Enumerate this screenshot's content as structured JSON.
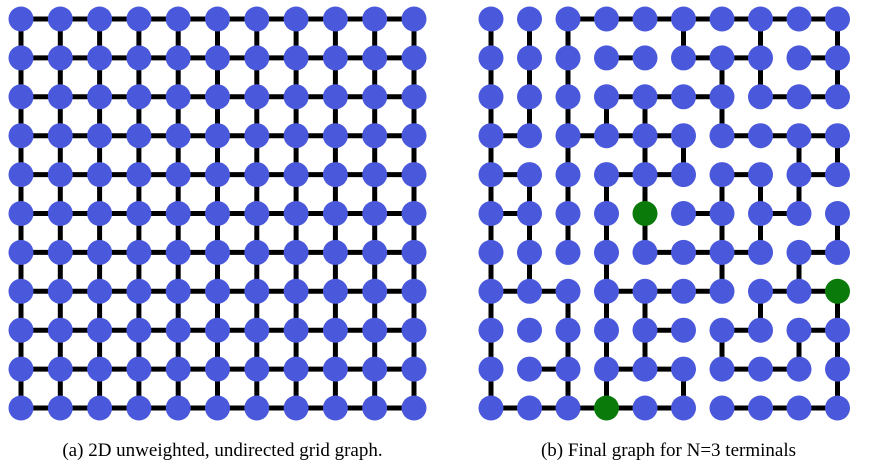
{
  "figure": {
    "panel_a": {
      "caption": "(a) 2D unweighted, undirected grid graph.",
      "grid": {
        "cols": 11,
        "rows": 11,
        "full": true
      }
    },
    "panel_b": {
      "caption": "(b) Final graph for N=3 terminals",
      "grid": {
        "cols": 10,
        "rows": 11
      },
      "terminals": [
        [
          4,
          5
        ],
        [
          9,
          7
        ],
        [
          3,
          10
        ]
      ],
      "h_edges": [
        [
          2,
          0
        ],
        [
          3,
          0
        ],
        [
          4,
          0
        ],
        [
          5,
          0
        ],
        [
          6,
          0
        ],
        [
          7,
          0
        ],
        [
          8,
          0
        ],
        [
          3,
          1
        ],
        [
          5,
          1
        ],
        [
          6,
          1
        ],
        [
          8,
          1
        ],
        [
          3,
          2
        ],
        [
          4,
          2
        ],
        [
          5,
          2
        ],
        [
          7,
          2
        ],
        [
          8,
          2
        ],
        [
          0,
          3
        ],
        [
          2,
          3
        ],
        [
          3,
          3
        ],
        [
          4,
          3
        ],
        [
          6,
          3
        ],
        [
          7,
          3
        ],
        [
          8,
          3
        ],
        [
          0,
          4
        ],
        [
          3,
          4
        ],
        [
          4,
          4
        ],
        [
          6,
          4
        ],
        [
          8,
          4
        ],
        [
          0,
          5
        ],
        [
          5,
          5
        ],
        [
          7,
          5
        ],
        [
          4,
          6
        ],
        [
          5,
          6
        ],
        [
          6,
          6
        ],
        [
          8,
          6
        ],
        [
          0,
          7
        ],
        [
          1,
          7
        ],
        [
          3,
          7
        ],
        [
          4,
          7
        ],
        [
          5,
          7
        ],
        [
          7,
          7
        ],
        [
          8,
          7
        ],
        [
          4,
          8
        ],
        [
          6,
          8
        ],
        [
          8,
          8
        ],
        [
          1,
          9
        ],
        [
          3,
          9
        ],
        [
          4,
          9
        ],
        [
          6,
          9
        ],
        [
          7,
          9
        ],
        [
          0,
          10
        ],
        [
          1,
          10
        ],
        [
          2,
          10
        ],
        [
          3,
          10
        ],
        [
          4,
          10
        ],
        [
          6,
          10
        ],
        [
          7,
          10
        ],
        [
          8,
          10
        ]
      ],
      "v_edges": [
        [
          0,
          0
        ],
        [
          1,
          0
        ],
        [
          2,
          0
        ],
        [
          5,
          0
        ],
        [
          7,
          0
        ],
        [
          9,
          0
        ],
        [
          0,
          1
        ],
        [
          1,
          1
        ],
        [
          2,
          1
        ],
        [
          6,
          1
        ],
        [
          7,
          1
        ],
        [
          9,
          1
        ],
        [
          0,
          2
        ],
        [
          1,
          2
        ],
        [
          2,
          2
        ],
        [
          3,
          2
        ],
        [
          4,
          2
        ],
        [
          6,
          2
        ],
        [
          0,
          3
        ],
        [
          2,
          3
        ],
        [
          4,
          3
        ],
        [
          5,
          3
        ],
        [
          8,
          3
        ],
        [
          9,
          3
        ],
        [
          0,
          4
        ],
        [
          1,
          4
        ],
        [
          2,
          4
        ],
        [
          3,
          4
        ],
        [
          4,
          4
        ],
        [
          6,
          4
        ],
        [
          7,
          4
        ],
        [
          8,
          4
        ],
        [
          0,
          5
        ],
        [
          1,
          5
        ],
        [
          2,
          5
        ],
        [
          3,
          5
        ],
        [
          4,
          5
        ],
        [
          6,
          5
        ],
        [
          7,
          5
        ],
        [
          9,
          5
        ],
        [
          0,
          6
        ],
        [
          1,
          6
        ],
        [
          3,
          6
        ],
        [
          6,
          6
        ],
        [
          8,
          6
        ],
        [
          0,
          7
        ],
        [
          2,
          7
        ],
        [
          3,
          7
        ],
        [
          4,
          7
        ],
        [
          7,
          7
        ],
        [
          9,
          7
        ],
        [
          0,
          8
        ],
        [
          2,
          8
        ],
        [
          3,
          8
        ],
        [
          4,
          8
        ],
        [
          6,
          8
        ],
        [
          8,
          8
        ],
        [
          9,
          8
        ],
        [
          0,
          9
        ],
        [
          2,
          9
        ],
        [
          3,
          9
        ],
        [
          5,
          9
        ],
        [
          9,
          9
        ]
      ]
    },
    "colors": {
      "node": "#4a58db",
      "terminal": "#0a7a0a",
      "edge": "#000000"
    }
  }
}
